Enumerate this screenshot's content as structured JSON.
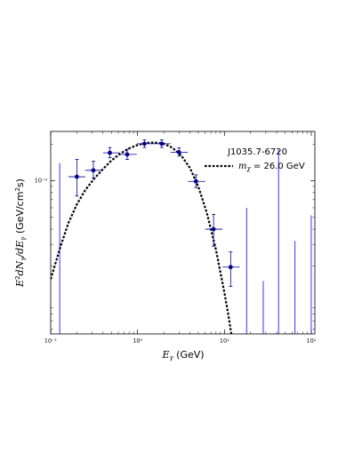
{
  "chart_data": {
    "type": "scatter",
    "title": "",
    "xlabel": "E_γ (GeV)",
    "ylabel": "E²dN_γ/dE_γ (GeV/cm²s)",
    "x_scale": "log",
    "y_scale": "log",
    "xlim": [
      0.1,
      110
    ],
    "ylim": [
      5.5e-11,
      2.55e-09
    ],
    "x_tick_labels": [
      "10⁻¹",
      "10⁰",
      "10¹",
      "10²"
    ],
    "x_ticks": [
      0.1,
      1,
      10,
      100
    ],
    "y_tick_labels": [
      "10⁻⁹"
    ],
    "y_ticks": [
      1e-09
    ],
    "grid": false,
    "legend": {
      "placement": "top-right",
      "source_name": "J1035.7-6720",
      "entries": [
        {
          "label_main": "m",
          "label_sub": "χ",
          "label_rest": " = 26.0 GeV",
          "style": "dotted",
          "color": "#000000"
        }
      ]
    },
    "data_points": {
      "color": "#00008B",
      "points": [
        {
          "x": 0.2,
          "y": 1.08e-09,
          "xlo": 0.16,
          "xhi": 0.25,
          "ylo": 7.5e-10,
          "yhi": 1.5e-09
        },
        {
          "x": 0.31,
          "y": 1.22e-09,
          "xlo": 0.25,
          "xhi": 0.4,
          "ylo": 1.05e-09,
          "yhi": 1.45e-09
        },
        {
          "x": 0.48,
          "y": 1.7e-09,
          "xlo": 0.4,
          "xhi": 0.62,
          "ylo": 1.55e-09,
          "yhi": 1.88e-09
        },
        {
          "x": 0.76,
          "y": 1.65e-09,
          "xlo": 0.62,
          "xhi": 0.98,
          "ylo": 1.5e-09,
          "yhi": 1.82e-09
        },
        {
          "x": 1.2,
          "y": 2.02e-09,
          "xlo": 0.98,
          "xhi": 1.53,
          "ylo": 1.88e-09,
          "yhi": 2.17e-09
        },
        {
          "x": 1.9,
          "y": 2.02e-09,
          "xlo": 1.53,
          "xhi": 2.4,
          "ylo": 1.88e-09,
          "yhi": 2.17e-09
        },
        {
          "x": 3.0,
          "y": 1.72e-09,
          "xlo": 2.4,
          "xhi": 3.8,
          "ylo": 1.6e-09,
          "yhi": 1.87e-09
        },
        {
          "x": 4.7,
          "y": 9.9e-10,
          "xlo": 3.8,
          "xhi": 6.0,
          "ylo": 8.8e-10,
          "yhi": 1.12e-09
        },
        {
          "x": 7.5,
          "y": 4e-10,
          "xlo": 6.0,
          "xhi": 9.5,
          "ylo": 2.9e-10,
          "yhi": 5.3e-10
        },
        {
          "x": 11.8,
          "y": 1.95e-10,
          "xlo": 9.5,
          "xhi": 15.0,
          "ylo": 1.35e-10,
          "yhi": 2.6e-10
        }
      ]
    },
    "upper_limits": {
      "color": "#0000FF",
      "lines": [
        {
          "x": 0.127,
          "y_top": 1.4e-09
        },
        {
          "x": 18.0,
          "y_top": 6e-10
        },
        {
          "x": 28.0,
          "y_top": 1.5e-10
        },
        {
          "x": 42.0,
          "y_top": 1.8e-09
        },
        {
          "x": 65.0,
          "y_top": 3.2e-10
        },
        {
          "x": 100.0,
          "y_top": 5.2e-10
        }
      ]
    },
    "model_curve": {
      "style": "dotted",
      "color": "#000000",
      "points": [
        [
          0.1,
          1.55e-10
        ],
        [
          0.13,
          2.9e-10
        ],
        [
          0.16,
          4.5e-10
        ],
        [
          0.2,
          6.4e-10
        ],
        [
          0.25,
          8.4e-10
        ],
        [
          0.32,
          1.05e-09
        ],
        [
          0.4,
          1.25e-09
        ],
        [
          0.5,
          1.47e-09
        ],
        [
          0.63,
          1.67e-09
        ],
        [
          0.8,
          1.85e-09
        ],
        [
          1.0,
          1.97e-09
        ],
        [
          1.26,
          2.05e-09
        ],
        [
          1.58,
          2.07e-09
        ],
        [
          2.0,
          2.02e-09
        ],
        [
          2.5,
          1.88e-09
        ],
        [
          3.16,
          1.63e-09
        ],
        [
          4.0,
          1.28e-09
        ],
        [
          5.0,
          9e-10
        ],
        [
          6.3,
          5.4e-10
        ],
        [
          8.0,
          2.7e-10
        ],
        [
          10.0,
          1.2e-10
        ],
        [
          11.0,
          8.2e-11
        ],
        [
          12.0,
          5.5e-11
        ]
      ]
    }
  }
}
